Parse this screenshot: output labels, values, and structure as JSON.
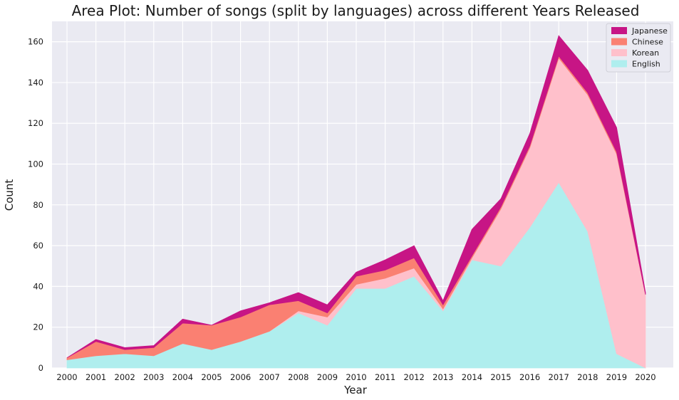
{
  "chart_data": {
    "type": "area",
    "stacked": true,
    "title": "Area Plot: Number of songs (split by languages) across different Years Released",
    "xlabel": "Year",
    "ylabel": "Count",
    "categories": [
      "2000",
      "2001",
      "2002",
      "2003",
      "2004",
      "2005",
      "2006",
      "2007",
      "2008",
      "2009",
      "2010",
      "2011",
      "2012",
      "2013",
      "2014",
      "2015",
      "2016",
      "2017",
      "2018",
      "2019",
      "2020"
    ],
    "ylim": [
      0,
      170
    ],
    "yticks": [
      0,
      20,
      40,
      60,
      80,
      100,
      120,
      140,
      160
    ],
    "grid": true,
    "legend_position": "top-right",
    "series": [
      {
        "name": "English",
        "color": "#afeeee",
        "values": [
          4,
          6,
          7,
          6,
          12,
          9,
          13,
          18,
          27,
          21,
          39,
          39,
          45,
          28,
          53,
          50,
          69,
          91,
          67,
          7,
          0
        ]
      },
      {
        "name": "Korean",
        "color": "#ffc0cb",
        "values": [
          0,
          0,
          0,
          0,
          0,
          0,
          0,
          0,
          1,
          4,
          2,
          5,
          4,
          1,
          1,
          28,
          39,
          61,
          67,
          98,
          36
        ]
      },
      {
        "name": "Chinese",
        "color": "#fa8072",
        "values": [
          1,
          7,
          2,
          4,
          10,
          12,
          12,
          13,
          5,
          2,
          4,
          4,
          5,
          2,
          1,
          1,
          1,
          1,
          1,
          1,
          0
        ]
      },
      {
        "name": "Japanese",
        "color": "#c71585",
        "values": [
          0,
          1,
          1,
          1,
          2,
          0,
          3,
          1,
          4,
          4,
          2,
          5,
          6,
          2,
          13,
          4,
          6,
          10,
          11,
          12,
          1
        ]
      }
    ],
    "legend_order": [
      "Japanese",
      "Chinese",
      "Korean",
      "English"
    ]
  }
}
